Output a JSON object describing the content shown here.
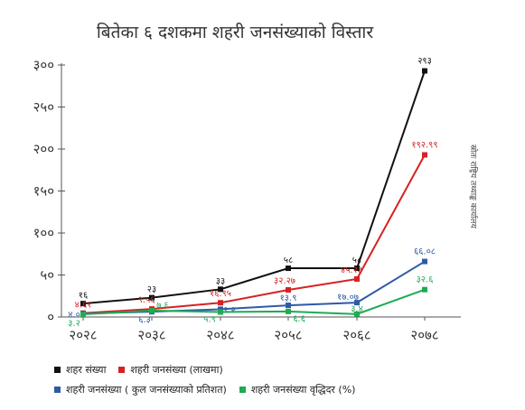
{
  "title": "बितेका ६ दशकमा शहरी जनसंख्याको विस्तार",
  "source_note": "स्रोतः राष्ट्रिय तथ्याङ्क कार्यालय",
  "chart_data": {
    "type": "line",
    "title": "बितेका ६ दशकमा शहरी जनसंख्याको विस्तार",
    "categories": [
      "२०२८",
      "२०३८",
      "२०४८",
      "२०५८",
      "२०६८",
      "२०७८"
    ],
    "yticks": [
      "०",
      "५०",
      "१००",
      "१५०",
      "२००",
      "२५०",
      "३००"
    ],
    "ylim": [
      0,
      300
    ],
    "grid": false,
    "legend_position": "bottom",
    "series": [
      {
        "name": "शहर संख्या",
        "color": "#111111",
        "values": [
          16,
          23,
          33,
          58,
          58,
          293
        ],
        "labels": [
          "१६",
          "२३",
          "३३",
          "५८",
          "५८",
          "२९३"
        ]
      },
      {
        "name": "शहरी जनसंख्या (लाखमा)",
        "color": "#d62222",
        "values": [
          4.61,
          9.56,
          16.95,
          32.27,
          45.23,
          192.99
        ],
        "labels": [
          "४.६१",
          "९.५६",
          "१६.९५",
          "३२.२७",
          "४५.२३",
          "१९२.९९"
        ]
      },
      {
        "name": "शहरी  जनसंख्या ( कुल जनसंख्याको प्रतिशत)",
        "color": "#2e5aa8",
        "values": [
          4.0,
          6.3,
          9.2,
          13.9,
          17.1,
          66.08
        ],
        "labels": [
          "४.०",
          "६.३",
          "९.२",
          "१३.९",
          "१७.०७",
          "६६.०८"
        ]
      },
      {
        "name": "शहरी जनसंख्या वृद्धिदर (%)",
        "color": "#1faa55",
        "values": [
          3.2,
          7.6,
          5.9,
          6.6,
          3.4,
          32.6
        ],
        "labels": [
          "३.२",
          "७.६",
          "५.९",
          "६.६",
          "३.४",
          "३२.६"
        ]
      }
    ]
  }
}
